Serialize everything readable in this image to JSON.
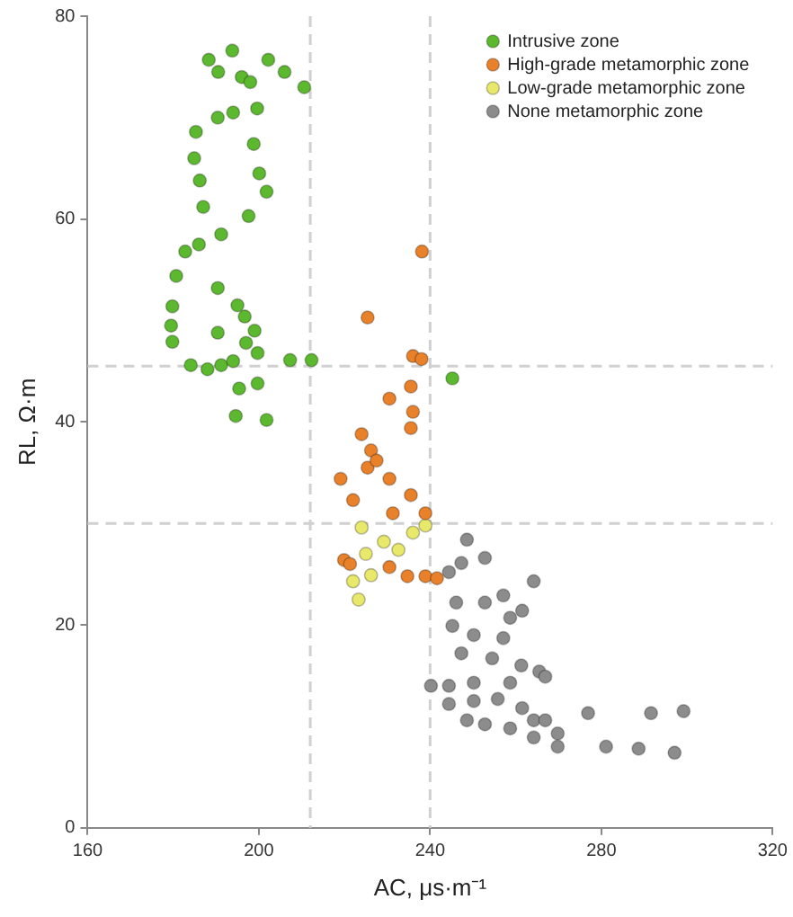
{
  "chart_data": {
    "type": "scatter",
    "xlabel": "AC, μs·m⁻¹",
    "ylabel": "RL, Ω·m",
    "xlim": [
      160,
      320
    ],
    "xticks": [
      160,
      200,
      240,
      280,
      320
    ],
    "ylim": [
      0,
      80
    ],
    "yticks": [
      0,
      20,
      40,
      60,
      80
    ],
    "grid": false,
    "legend": "top right",
    "marker": "circle",
    "ref_lines": [
      {
        "axis": "x",
        "value": 212,
        "label": null,
        "color": "#d0d0d0",
        "line_style": "dashed"
      },
      {
        "axis": "x",
        "value": 240,
        "label": null,
        "color": "#d0d0d0",
        "line_style": "dashed"
      },
      {
        "axis": "y",
        "value": 30,
        "label": null,
        "color": "#d0d0d0",
        "line_style": "dashed"
      },
      {
        "axis": "y",
        "value": 45.5,
        "label": null,
        "color": "#d0d0d0",
        "line_style": "dashed"
      }
    ],
    "series": [
      {
        "name": "Intrusive zone",
        "color": "#5cb82e",
        "x": [
          188.3,
          190.5,
          193.8,
          196,
          198,
          202.2,
          206,
          210.6,
          199.6,
          194,
          190.4,
          185.3,
          184.9,
          186.2,
          187,
          198.8,
          200.1,
          201.8,
          197.6,
          191.2,
          186,
          182.8,
          180.7,
          179.8,
          179.5,
          179.8,
          184.1,
          188,
          191.2,
          196.7,
          195,
          199,
          197,
          190.4,
          190.4,
          194,
          199.7,
          207.3,
          212.3,
          195.4,
          194.6,
          201.8,
          199.7,
          245.2
        ],
        "values": [
          75.7,
          74.5,
          76.6,
          74,
          73.5,
          75.7,
          74.5,
          73,
          70.9,
          70.5,
          70,
          68.6,
          66,
          63.8,
          61.2,
          67.4,
          64.5,
          62.7,
          60.3,
          58.5,
          57.5,
          56.8,
          54.4,
          51.4,
          49.5,
          47.9,
          45.6,
          45.2,
          45.6,
          50.4,
          51.5,
          49,
          47.8,
          53.2,
          48.8,
          46,
          46.8,
          46.1,
          46.1,
          43.3,
          40.6,
          40.2,
          43.8,
          44.3
        ]
      },
      {
        "name": "High-grade metamorphic zone",
        "color": "#e8812a",
        "x": [
          238.1,
          225.4,
          236,
          238,
          235.5,
          230.5,
          236,
          235.5,
          224,
          226.2,
          219.1,
          222,
          225.4,
          230.5,
          231.3,
          235.5,
          238.9,
          219.9,
          221.3,
          230.5,
          234.7,
          238.9,
          241.6,
          227.5
        ],
        "values": [
          56.8,
          50.3,
          46.5,
          46.2,
          43.5,
          42.3,
          41,
          39.4,
          38.8,
          37.2,
          34.4,
          32.3,
          35.5,
          34.4,
          31,
          32.8,
          31,
          26.4,
          26,
          25.7,
          24.8,
          24.8,
          24.6,
          36.2
        ]
      },
      {
        "name": "Low-grade metamorphic zone",
        "color": "#e8e86a",
        "x": [
          224,
          229.2,
          236,
          238.9,
          222,
          223.3,
          226.2,
          232.6,
          225
        ],
        "values": [
          29.6,
          28.2,
          29.1,
          29.8,
          24.3,
          22.5,
          24.9,
          27.4,
          27
        ]
      },
      {
        "name": "None metamorphic zone",
        "color": "#8c8c8c",
        "x": [
          248.6,
          252.8,
          247.3,
          244.4,
          264.2,
          246.1,
          252.8,
          257.1,
          245.2,
          258.7,
          261.5,
          250.2,
          257.1,
          247.3,
          254.5,
          261.3,
          265.5,
          266.9,
          240.2,
          244.4,
          250.2,
          258.7,
          244.4,
          250.2,
          255.8,
          248.6,
          252.8,
          258.7,
          264.2,
          264.2,
          269.8,
          269.8,
          276.9,
          281.1,
          288.7,
          291.6,
          297.1,
          299.2,
          261.5,
          266.9
        ],
        "values": [
          28.4,
          26.6,
          26.1,
          25.2,
          24.3,
          22.2,
          22.2,
          22.9,
          19.9,
          20.7,
          21.4,
          19,
          18.7,
          17.2,
          16.7,
          16,
          15.4,
          14.9,
          14,
          14,
          14.3,
          14.3,
          12.2,
          12.5,
          12.7,
          10.6,
          10.2,
          9.8,
          10.6,
          8.9,
          9.3,
          8,
          11.3,
          8,
          7.8,
          11.3,
          7.4,
          11.5,
          11.8,
          10.6
        ]
      }
    ]
  }
}
